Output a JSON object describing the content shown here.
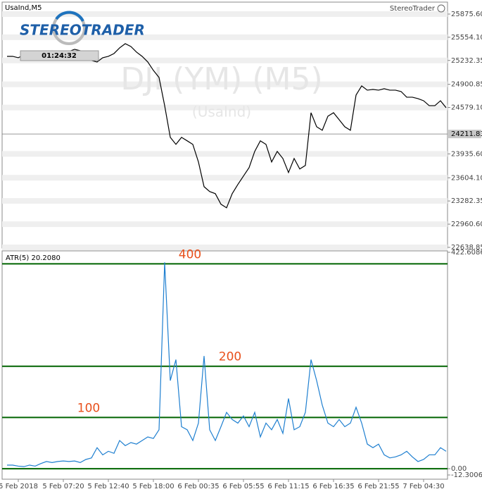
{
  "chart_data": [
    {
      "type": "line",
      "title": "UsaInd,M5",
      "watermark": "DJI (YM) (M5)",
      "watermark_sub": "(UsaInd)",
      "logo": "STEREOTRADER",
      "brand": "StereoTrader",
      "timer": "01:24:32",
      "color": "#000000",
      "values": [
        25289,
        25289,
        25270,
        25309,
        25328,
        25348,
        25348,
        25328,
        25367,
        25348,
        25328,
        25358,
        25387,
        25367,
        25328,
        25231,
        25211,
        25270,
        25289,
        25328,
        25407,
        25465,
        25426,
        25348,
        25289,
        25211,
        25094,
        24996,
        24605,
        24165,
        24068,
        24165,
        24117,
        24068,
        23824,
        23481,
        23413,
        23384,
        23237,
        23188,
        23384,
        23511,
        23628,
        23745,
        23970,
        24117,
        24068,
        23824,
        23970,
        23872,
        23677,
        23872,
        23726,
        23775,
        24507,
        24312,
        24263,
        24459,
        24507,
        24410,
        24312,
        24263,
        24752,
        24879,
        24820,
        24830,
        24820,
        24840,
        24820,
        24820,
        24801,
        24722,
        24722,
        24703,
        24673,
        24605,
        24605,
        24673,
        24576
      ],
      "current_price": 24211.83,
      "ylim": [
        22629,
        26022
      ],
      "yticks": [
        {
          "value": 25875.6,
          "label": "25875.60"
        },
        {
          "value": 25554.1,
          "label": "25554.10"
        },
        25232.35,
        24900.85,
        {
          "value": 24579.1,
          "label": "24579.10"
        },
        {
          "value": 23935.6,
          "label": "23935.60"
        },
        {
          "value": 23604.1,
          "label": "23604.10"
        },
        23282.35,
        {
          "value": 22960.6,
          "label": "22960.60"
        },
        22638.85
      ],
      "grid": true
    },
    {
      "type": "line",
      "title": "ATR(5) 20.2080",
      "color": "#1e7fd0",
      "categories": [
        null,
        null,
        "5 Feb 2018",
        null,
        null,
        null,
        null,
        null,
        null,
        null,
        "5 Feb 07:20",
        null,
        null,
        null,
        null,
        null,
        null,
        null,
        "5 Feb 12:40",
        null,
        null,
        null,
        null,
        null,
        null,
        null,
        "5 Feb 18:00",
        null,
        null,
        null,
        null,
        null,
        null,
        null,
        "6 Feb 00:35",
        null,
        null,
        null,
        null,
        null,
        null,
        null,
        "6 Feb 05:55",
        null,
        null,
        null,
        null,
        null,
        null,
        null,
        "6 Feb 11:15",
        null,
        null,
        null,
        null,
        null,
        null,
        null,
        "6 Feb 16:35",
        null,
        null,
        null,
        null,
        null,
        null,
        null,
        "6 Feb 21:55",
        null,
        null,
        null,
        null,
        null,
        null,
        null,
        "7 Feb 04:30",
        null,
        null,
        null,
        null
      ],
      "values": [
        7,
        7,
        5,
        4,
        7,
        5,
        10,
        14,
        12,
        14,
        15,
        14,
        15,
        12,
        18,
        21,
        41,
        27,
        34,
        30,
        55,
        45,
        51,
        48,
        55,
        62,
        59,
        76,
        403,
        172,
        213,
        82,
        76,
        55,
        89,
        220,
        76,
        55,
        82,
        110,
        96,
        89,
        103,
        82,
        110,
        62,
        89,
        76,
        96,
        69,
        137,
        76,
        82,
        110,
        213,
        172,
        124,
        89,
        82,
        96,
        82,
        89,
        120,
        89,
        48,
        41,
        48,
        27,
        21,
        23,
        27,
        34,
        23,
        14,
        18,
        27,
        27,
        41,
        34
      ],
      "ylim": [
        -12.3006,
        422.6086
      ],
      "yticks": [
        -12.3006,
        {
          "value": 0,
          "label": "0.00"
        },
        422.6086
      ],
      "levels": [
        100,
        200,
        400
      ],
      "level_color": "#006400",
      "level_label_color": "#e8501c"
    }
  ]
}
